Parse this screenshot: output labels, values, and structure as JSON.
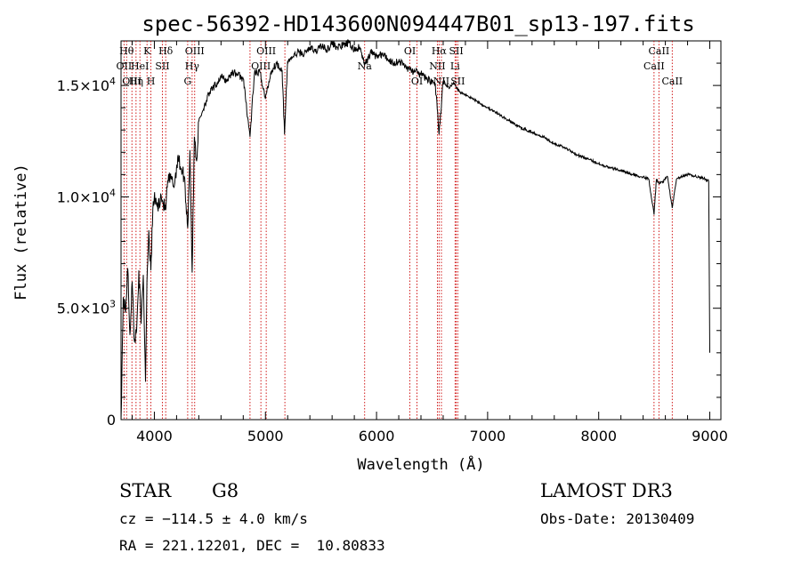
{
  "chart_data": {
    "type": "line",
    "title": "spec-56392-HD143600N094447B01_sp13-197.fits",
    "xlabel": "Wavelength (Å)",
    "ylabel": "Flux (relative)",
    "xlim": [
      3700,
      9100
    ],
    "ylim": [
      0,
      17000
    ],
    "xticks": [
      4000,
      5000,
      6000,
      7000,
      8000,
      9000
    ],
    "xtick_labels": [
      "4000",
      "5000",
      "6000",
      "7000",
      "8000",
      "9000"
    ],
    "yticks": [
      0,
      5000,
      10000,
      15000
    ],
    "ytick_labels": [
      {
        "main": "0",
        "exp": ""
      },
      {
        "main": "5.0×10",
        "exp": "3"
      },
      {
        "main": "1.0×10",
        "exp": "4"
      },
      {
        "main": "1.5×10",
        "exp": "4"
      }
    ],
    "grid": false,
    "series": [
      {
        "x": [
          3700,
          3720,
          3740,
          3760,
          3780,
          3800,
          3820,
          3840,
          3860,
          3880,
          3900,
          3920,
          3933,
          3950,
          3968,
          3990,
          4010,
          4030,
          4060,
          4080,
          4101,
          4120,
          4150,
          4180,
          4210,
          4240,
          4270,
          4300,
          4320,
          4340,
          4360,
          4380,
          4400,
          4450,
          4500,
          4550,
          4600,
          4650,
          4700,
          4750,
          4800,
          4861,
          4900,
          4950,
          5000,
          5050,
          5100,
          5150,
          5172,
          5200,
          5250,
          5300,
          5350,
          5400,
          5450,
          5500,
          5550,
          5600,
          5650,
          5700,
          5750,
          5800,
          5850,
          5893,
          5950,
          6000,
          6050,
          6100,
          6150,
          6200,
          6250,
          6300,
          6350,
          6400,
          6450,
          6500,
          6530,
          6563,
          6600,
          6650,
          6700,
          6750,
          6800,
          6900,
          7000,
          7100,
          7200,
          7300,
          7400,
          7500,
          7600,
          7700,
          7800,
          7900,
          8000,
          8100,
          8200,
          8300,
          8400,
          8450,
          8498,
          8520,
          8542,
          8580,
          8620,
          8662,
          8700,
          8800,
          8900,
          8960,
          8990,
          9000
        ],
        "y": [
          0,
          5500,
          4800,
          6800,
          3800,
          6200,
          3500,
          4000,
          6700,
          4300,
          6500,
          1700,
          6200,
          8500,
          6700,
          9800,
          9900,
          9500,
          10100,
          9700,
          9400,
          10700,
          10800,
          10500,
          11800,
          11300,
          10900,
          8600,
          12100,
          6600,
          12700,
          11600,
          13400,
          14100,
          14700,
          15000,
          15400,
          15200,
          15600,
          15500,
          15300,
          12700,
          15500,
          15600,
          14400,
          15600,
          16000,
          15700,
          12800,
          16100,
          16300,
          16500,
          16400,
          16700,
          16500,
          16800,
          16600,
          16900,
          16700,
          16800,
          16900,
          16600,
          16700,
          15900,
          16500,
          16300,
          16400,
          16200,
          16000,
          16100,
          15900,
          15700,
          15600,
          15500,
          15300,
          15200,
          15000,
          12800,
          15200,
          14900,
          15100,
          14700,
          14600,
          14300,
          14000,
          13700,
          13400,
          13100,
          12900,
          12700,
          12400,
          12200,
          11900,
          11700,
          11500,
          11300,
          11200,
          11000,
          10900,
          10800,
          9200,
          10800,
          10600,
          10700,
          10900,
          9500,
          10800,
          11000,
          10900,
          10800,
          10700,
          3000
        ]
      }
    ],
    "lines": [
      {
        "x": 3727,
        "label": "OII",
        "row": 2
      },
      {
        "x": 3750,
        "label": "Hθ",
        "row": 1
      },
      {
        "x": 3798,
        "label": "OIII",
        "row": 3
      },
      {
        "x": 3835,
        "label": "Hη",
        "row": 3
      },
      {
        "x": 3870,
        "label": "HeI",
        "row": 2
      },
      {
        "x": 3934,
        "label": "K",
        "row": 1
      },
      {
        "x": 3969,
        "label": "H",
        "row": 3
      },
      {
        "x": 4072,
        "label": "SII",
        "row": 2
      },
      {
        "x": 4102,
        "label": "Hδ",
        "row": 1
      },
      {
        "x": 4300,
        "label": "G",
        "row": 3
      },
      {
        "x": 4340,
        "label": "Hγ",
        "row": 2
      },
      {
        "x": 4363,
        "label": "OIII",
        "row": 1
      },
      {
        "x": 4861,
        "label": "",
        "row": 0
      },
      {
        "x": 4959,
        "label": "OIII",
        "row": 2
      },
      {
        "x": 5007,
        "label": "OIII",
        "row": 1
      },
      {
        "x": 5175,
        "label": "",
        "row": 0
      },
      {
        "x": 5893,
        "label": "Na",
        "row": 2
      },
      {
        "x": 6300,
        "label": "OI",
        "row": 1
      },
      {
        "x": 6364,
        "label": "OI",
        "row": 3
      },
      {
        "x": 6548,
        "label": "NII",
        "row": 2
      },
      {
        "x": 6563,
        "label": "Hα",
        "row": 1
      },
      {
        "x": 6584,
        "label": "NII",
        "row": 3
      },
      {
        "x": 6707,
        "label": "Li",
        "row": 2
      },
      {
        "x": 6717,
        "label": "SII",
        "row": 1
      },
      {
        "x": 6731,
        "label": "SII",
        "row": 3
      },
      {
        "x": 8498,
        "label": "CaII",
        "row": 2
      },
      {
        "x": 8542,
        "label": "CaII",
        "row": 1
      },
      {
        "x": 8662,
        "label": "CaII",
        "row": 3
      }
    ]
  },
  "info": {
    "object_class": "STAR",
    "subclass": "G8",
    "survey": "LAMOST DR3",
    "cz": "cz = −114.5 ± 4.0 km/s",
    "obs_date": "Obs-Date: 20130409",
    "coords": "RA = 221.12201, DEC =  10.80833"
  },
  "colors": {
    "line_marker": "#cc0000",
    "spectrum": "#000000"
  }
}
